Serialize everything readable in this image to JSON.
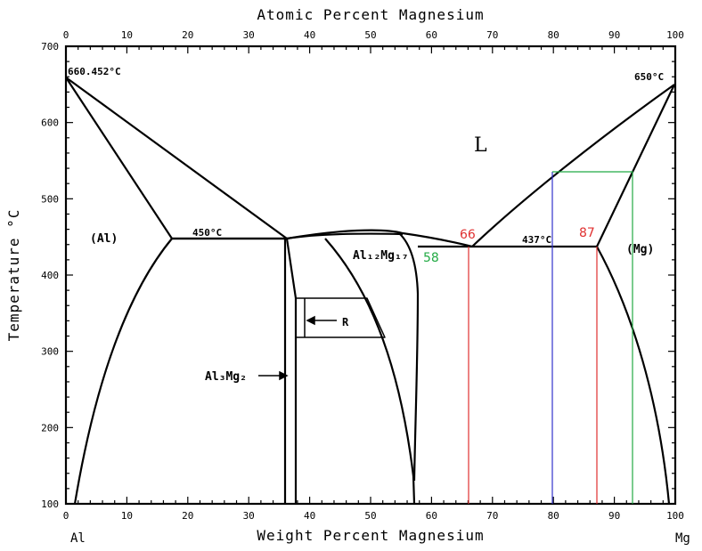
{
  "chart_data": {
    "type": "phase-diagram",
    "title": "",
    "top_axis": {
      "label": "Atomic Percent Magnesium",
      "ticks": [
        "0",
        "10",
        "20",
        "30",
        "40",
        "50",
        "60",
        "70",
        "80",
        "90",
        "100"
      ]
    },
    "bottom_axis": {
      "label": "Weight Percent Magnesium",
      "range": [
        0,
        100
      ],
      "ticks": [
        "0",
        "10",
        "20",
        "30",
        "40",
        "50",
        "60",
        "70",
        "80",
        "90",
        "100"
      ]
    },
    "left_axis": {
      "label": "Temperature °C",
      "range": [
        100,
        700
      ],
      "ticks": [
        "100",
        "200",
        "300",
        "400",
        "500",
        "600",
        "700"
      ]
    },
    "corner_labels": {
      "left": "Al",
      "right": "Mg"
    },
    "temperature_labels": {
      "al_melting": "660.452°C",
      "mg_melting": "650°C",
      "eutectic_left": "450°C",
      "eutectic_right": "437°C"
    },
    "phase_labels": {
      "liquid": "L",
      "al_solid": "(Al)",
      "mg_solid": "(Mg)",
      "al12mg17": "Al₁₂Mg₁₇",
      "al3mg2": "Al₃Mg₂",
      "r_phase": "R"
    },
    "boundaries": {
      "al_melting_point": [
        0,
        660.452
      ],
      "mg_melting_point": [
        100,
        650
      ],
      "left_eutectic": {
        "temperature": 450,
        "from": 17.8,
        "to": 36.8
      },
      "right_eutectic": {
        "temperature": 437,
        "from": 57.5,
        "to": 87.3
      },
      "al12mg17_max": [
        52,
        455
      ],
      "al3mg2_left_solvus": [
        [
          36.5,
          450
        ],
        [
          36.5,
          100
        ]
      ],
      "al3mg2_right_solvus": [
        [
          37.6,
          380
        ],
        [
          38,
          100
        ]
      ],
      "r_phase_box": {
        "x_from": 38,
        "x_to": 52,
        "t_top": 370,
        "t_bottom": 320
      }
    },
    "annotations": [
      {
        "text": "66",
        "color": "#e03030",
        "x": 66,
        "t_from": 100,
        "t_to": 437
      },
      {
        "text": "87",
        "color": "#e03030",
        "x": 87.3,
        "t_from": 100,
        "t_to": 437
      },
      {
        "text": "58",
        "color": "#22aa44",
        "x": 58
      },
      {
        "color": "#3333cc",
        "x": 80,
        "t_from": 100,
        "t_to": 535
      },
      {
        "color": "#22aa44",
        "x_from": 80,
        "x_to": 93,
        "t_from": 100,
        "t_to": 535
      }
    ]
  }
}
